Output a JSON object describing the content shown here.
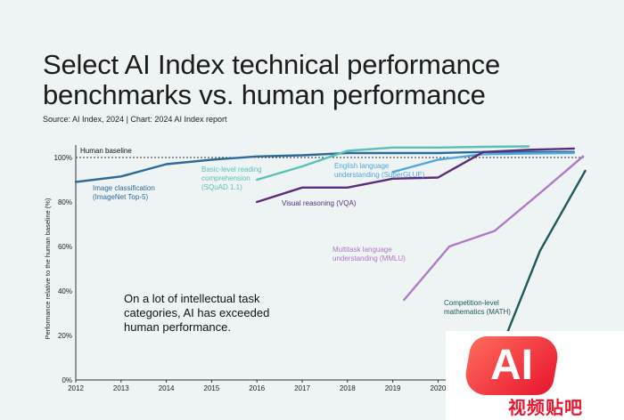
{
  "header": {
    "title_line1": "Select AI Index technical performance",
    "title_line2": "benchmarks vs. human performance",
    "source": "Source: AI Index, 2024 | Chart: 2024 AI Index report"
  },
  "watermark": {
    "logo_letters": "AI",
    "logo_text": "视频贴吧"
  },
  "chart_data": {
    "type": "line",
    "ylabel": "Performance relative to the human baseline (%)",
    "xlim": [
      2012,
      2023
    ],
    "ylim": [
      0,
      100
    ],
    "x_ticks": [
      "2012",
      "2013",
      "2014",
      "2015",
      "2016",
      "2017",
      "2018",
      "2019",
      "2020"
    ],
    "y_ticks": [
      "0%",
      "20%",
      "40%",
      "60%",
      "80%",
      "100%"
    ],
    "grid": false,
    "baseline": {
      "label": "Human baseline",
      "value": 100
    },
    "annotation": [
      "On a lot of intellectual task",
      "categories, AI has exceeded",
      "human performance."
    ],
    "series": [
      {
        "name": "Image classification (ImageNet Top-5)",
        "label_lines": [
          "Image classification",
          "(ImageNet Top-5)"
        ],
        "color": "#2c6b99",
        "points": [
          [
            2012,
            89
          ],
          [
            2013,
            91.5
          ],
          [
            2014,
            97
          ],
          [
            2015,
            99
          ],
          [
            2016,
            100.5
          ],
          [
            2017,
            101
          ],
          [
            2018,
            102
          ],
          [
            2019,
            102
          ],
          [
            2020,
            102
          ],
          [
            2021,
            102.5
          ],
          [
            2022,
            102.5
          ],
          [
            2023,
            102.5
          ]
        ]
      },
      {
        "name": "Basic-level reading comprehension (SQuAD 1.1)",
        "label_lines": [
          "Basic-level reading",
          "comprehension",
          "(SQuAD 1.1)"
        ],
        "color": "#5bc1b6",
        "points": [
          [
            2016,
            90
          ],
          [
            2017,
            96
          ],
          [
            2018,
            103
          ],
          [
            2019,
            104.5
          ],
          [
            2020,
            104.5
          ],
          [
            2021,
            104.8
          ],
          [
            2022,
            105
          ]
        ]
      },
      {
        "name": "English language understanding (SuperGLUE)",
        "label_lines": [
          "English language",
          "understanding (SuperGLUE)"
        ],
        "color": "#52a8de",
        "points": [
          [
            2019,
            93.5
          ],
          [
            2020,
            99
          ],
          [
            2021,
            101.5
          ],
          [
            2022,
            101.8
          ],
          [
            2023,
            102
          ]
        ]
      },
      {
        "name": "Visual reasoning (VQA)",
        "label_lines": [
          "Visual reasoning (VQA)"
        ],
        "color": "#5a2d78",
        "points": [
          [
            2016,
            80
          ],
          [
            2017,
            86.5
          ],
          [
            2018,
            86.5
          ],
          [
            2019,
            90.5
          ],
          [
            2020,
            91
          ],
          [
            2021,
            102.5
          ],
          [
            2022,
            103.5
          ],
          [
            2023,
            104
          ]
        ]
      },
      {
        "name": "Multitask language understanding (MMLU)",
        "label_lines": [
          "Multitask language",
          "understanding (MMLU)"
        ],
        "color": "#b079c8",
        "points": [
          [
            2019.25,
            36
          ],
          [
            2020.25,
            60
          ],
          [
            2021.25,
            67
          ],
          [
            2022.25,
            84
          ],
          [
            2023.2,
            100.5
          ]
        ]
      },
      {
        "name": "Competition-level mathematics (MATH)",
        "label_lines": [
          "Competition-level",
          "mathematics (MATH)"
        ],
        "color": "#1f5a5a",
        "points": [
          [
            2021.25,
            7
          ],
          [
            2022.25,
            58
          ],
          [
            2023.25,
            94
          ]
        ]
      }
    ]
  }
}
